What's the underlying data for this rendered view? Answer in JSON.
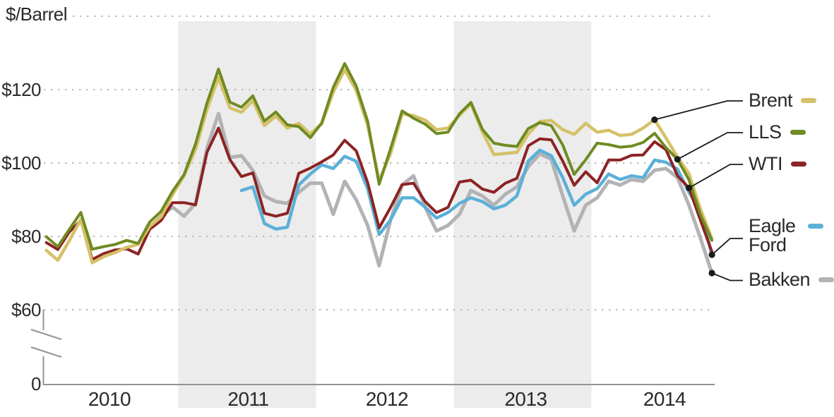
{
  "unit_label": "$/Barrel",
  "palette": {
    "band": "#ececec",
    "gridline": "#bababa",
    "axis": "#949494",
    "text": "#2a2a2c",
    "callout": "#1a1a1a",
    "background": "#ffffff"
  },
  "y_axis": {
    "gridline_values": [
      140,
      120,
      100,
      80,
      60
    ],
    "ticks": [
      {
        "label": "$120",
        "value": 120
      },
      {
        "label": "$100",
        "value": 100
      },
      {
        "label": "$80",
        "value": 80
      },
      {
        "label": "$60",
        "value": 60
      },
      {
        "label": "0",
        "value": 0
      }
    ],
    "has_axis_break": true
  },
  "x_axis": {
    "start": "2010-01",
    "end": "2014-11",
    "years": [
      {
        "label": "2010",
        "shaded": false
      },
      {
        "label": "2011",
        "shaded": true
      },
      {
        "label": "2012",
        "shaded": false
      },
      {
        "label": "2013",
        "shaded": true
      },
      {
        "label": "2014",
        "shaded": false
      }
    ]
  },
  "chart_data": {
    "type": "line",
    "x_unit": "month",
    "ylabel": "$/Barrel",
    "ylim": [
      0,
      145
    ],
    "grid": "dotted-horizontal",
    "legend_position": "right",
    "shaded_years": [
      "2011",
      "2013"
    ],
    "series": [
      {
        "name": "Brent",
        "color": "#d5c169",
        "start_month": "2010-01",
        "values": [
          76.2,
          73.5,
          78.8,
          84.6,
          72.8,
          74.5,
          75.6,
          77.0,
          77.8,
          82.7,
          85.3,
          91.4,
          96.5,
          103.7,
          114.6,
          123.3,
          115.0,
          113.8,
          117.0,
          110.2,
          112.8,
          109.5,
          110.8,
          107.9,
          110.7,
          119.3,
          125.4,
          119.8,
          110.3,
          95.2,
          102.6,
          113.4,
          112.9,
          111.7,
          109.1,
          109.5,
          113.0,
          116.1,
          108.5,
          102.3,
          102.6,
          102.9,
          107.9,
          111.3,
          111.6,
          109.1,
          107.8,
          110.8,
          108.4,
          108.9,
          107.5,
          107.8,
          109.5,
          111.8,
          106.8,
          101.6,
          97.1,
          87.4,
          79.4
        ]
      },
      {
        "name": "LLS",
        "color": "#6f8b22",
        "start_month": "2010-01",
        "values": [
          79.9,
          77.2,
          81.9,
          86.5,
          76.5,
          77.2,
          77.8,
          78.9,
          78.1,
          83.9,
          86.8,
          92.3,
          96.8,
          105.2,
          116.3,
          125.6,
          116.6,
          115.2,
          118.3,
          111.4,
          113.9,
          110.4,
          109.9,
          106.9,
          110.9,
          120.6,
          127.1,
          121.0,
          111.4,
          94.2,
          103.9,
          114.2,
          112.2,
          110.6,
          108.0,
          108.4,
          113.4,
          116.5,
          109.2,
          105.4,
          104.8,
          104.5,
          109.4,
          111.0,
          110.2,
          104.9,
          96.9,
          100.9,
          105.4,
          105.0,
          104.3,
          104.6,
          105.6,
          108.1,
          104.2,
          101.0,
          95.4,
          85.9,
          78.9
        ]
      },
      {
        "name": "WTI",
        "color": "#8c2324",
        "start_month": "2010-01",
        "values": [
          78.3,
          76.4,
          81.2,
          84.3,
          73.7,
          75.3,
          76.3,
          76.6,
          75.2,
          81.9,
          84.3,
          89.2,
          89.2,
          88.6,
          102.9,
          109.5,
          100.9,
          96.3,
          97.3,
          86.3,
          85.5,
          86.3,
          97.2,
          98.6,
          100.3,
          102.2,
          106.2,
          103.3,
          94.7,
          82.3,
          87.9,
          94.1,
          94.5,
          89.5,
          86.5,
          87.9,
          94.8,
          95.3,
          92.9,
          92.0,
          94.5,
          95.8,
          104.7,
          106.6,
          106.3,
          100.5,
          93.9,
          97.6,
          94.6,
          100.8,
          100.8,
          102.1,
          102.2,
          105.8,
          103.6,
          96.5,
          93.2,
          84.4,
          75.8
        ]
      },
      {
        "name": "Eagle Ford",
        "color": "#5bb0d8",
        "start_month": "2011-06",
        "values": [
          92.5,
          93.5,
          83.5,
          82.0,
          82.5,
          94.0,
          97.0,
          99.5,
          98.5,
          101.8,
          100.5,
          93.0,
          80.5,
          84.5,
          90.5,
          90.5,
          88.0,
          85.0,
          86.5,
          89.0,
          90.5,
          89.5,
          87.5,
          88.5,
          91.0,
          100.5,
          103.5,
          102.0,
          96.0,
          88.5,
          91.5,
          93.0,
          97.0,
          95.5,
          96.5,
          96.0,
          100.8,
          100.2,
          98.3,
          92.0,
          87.0,
          75.0
        ]
      },
      {
        "name": "Bakken",
        "color": "#b3b3b5",
        "start_month": "2010-10",
        "values": [
          82.5,
          85.5,
          88.0,
          85.5,
          89.0,
          104.0,
          113.5,
          101.5,
          102.0,
          98.0,
          91.0,
          89.5,
          89.0,
          92.0,
          94.5,
          94.5,
          86.0,
          95.0,
          90.0,
          83.0,
          72.0,
          84.5,
          94.0,
          96.5,
          88.0,
          81.5,
          83.0,
          86.0,
          92.5,
          91.0,
          88.5,
          91.5,
          93.5,
          99.0,
          102.5,
          101.0,
          91.0,
          81.5,
          88.5,
          90.5,
          95.0,
          94.0,
          95.5,
          95.0,
          98.0,
          98.5,
          96.0,
          88.5,
          79.5,
          70.0
        ]
      }
    ],
    "callouts": [
      {
        "series": "Brent",
        "month": "2014-06"
      },
      {
        "series": "LLS",
        "month": "2014-08"
      },
      {
        "series": "WTI",
        "month": "2014-09"
      },
      {
        "series": "Eagle Ford",
        "month": "2014-11"
      },
      {
        "series": "Bakken",
        "month": "2014-11"
      }
    ]
  }
}
